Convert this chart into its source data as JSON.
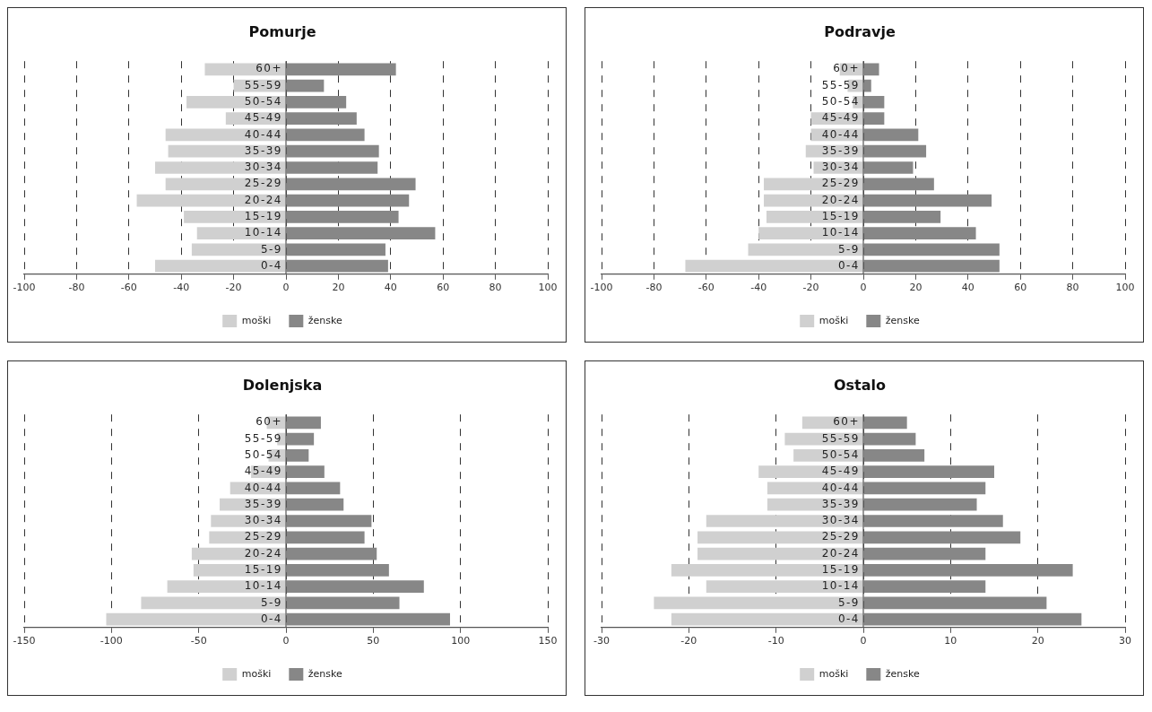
{
  "chart_data": [
    {
      "type": "bar",
      "title": "Pomurje",
      "orientation": "horizontal",
      "stacked": true,
      "grid": "x",
      "legend": "bottom",
      "categories": [
        "60+",
        "55-59",
        "50-54",
        "45-49",
        "40-44",
        "35-39",
        "30-34",
        "25-29",
        "20-24",
        "15-19",
        "10-14",
        "5-9",
        "0-4"
      ],
      "xlim": [
        -100,
        100
      ],
      "xticks": [
        -100,
        -80,
        -60,
        -40,
        -20,
        0,
        20,
        40,
        60,
        80,
        100
      ],
      "series": [
        {
          "name": "moški",
          "color": "#d0d0d0",
          "values": [
            -31,
            -20,
            -38,
            -23,
            -46,
            -45,
            -50,
            -46,
            -57,
            -39,
            -34,
            -36,
            -50
          ]
        },
        {
          "name": "ženske",
          "color": "#878787",
          "values": [
            42,
            14.5,
            23,
            27,
            30,
            35.5,
            35,
            49.5,
            47,
            43,
            57,
            38,
            39
          ]
        }
      ]
    },
    {
      "type": "bar",
      "title": "Podravje",
      "orientation": "horizontal",
      "stacked": true,
      "grid": "x",
      "legend": "bottom",
      "categories": [
        "60+",
        "55-59",
        "50-54",
        "45-49",
        "40-44",
        "35-39",
        "30-34",
        "25-29",
        "20-24",
        "15-19",
        "10-14",
        "5-9",
        "0-4"
      ],
      "xlim": [
        -100,
        100
      ],
      "xticks": [
        -100,
        -80,
        -60,
        -40,
        -20,
        0,
        20,
        40,
        60,
        80,
        100
      ],
      "series": [
        {
          "name": "moški",
          "color": "#d0d0d0",
          "values": [
            -9,
            -6,
            -4,
            -20,
            -20,
            -22,
            -19,
            -38,
            -38,
            -37,
            -40,
            -44,
            -68
          ]
        },
        {
          "name": "ženske",
          "color": "#878787",
          "values": [
            6,
            3,
            8,
            8,
            21,
            24,
            19,
            27,
            49,
            29.5,
            43,
            52,
            52
          ]
        }
      ]
    },
    {
      "type": "bar",
      "title": "Dolenjska",
      "orientation": "horizontal",
      "stacked": true,
      "grid": "x",
      "legend": "bottom",
      "categories": [
        "60+",
        "55-59",
        "50-54",
        "45-49",
        "40-44",
        "35-39",
        "30-34",
        "25-29",
        "20-24",
        "15-19",
        "10-14",
        "5-9",
        "0-4"
      ],
      "xlim": [
        -150,
        150
      ],
      "xticks": [
        -150,
        -100,
        -50,
        0,
        50,
        100,
        150
      ],
      "series": [
        {
          "name": "moški",
          "color": "#d0d0d0",
          "values": [
            -11,
            -5,
            -10,
            -20,
            -32,
            -38,
            -43,
            -44,
            -54,
            -53,
            -68,
            -83,
            -103
          ]
        },
        {
          "name": "ženske",
          "color": "#878787",
          "values": [
            20,
            16,
            13,
            22,
            31,
            33,
            49,
            45,
            52,
            59,
            79,
            65,
            94
          ]
        }
      ]
    },
    {
      "type": "bar",
      "title": "Ostalo",
      "orientation": "horizontal",
      "stacked": true,
      "grid": "x",
      "legend": "bottom",
      "categories": [
        "60+",
        "55-59",
        "50-54",
        "45-49",
        "40-44",
        "35-39",
        "30-34",
        "25-29",
        "20-24",
        "15-19",
        "10-14",
        "5-9",
        "0-4"
      ],
      "xlim": [
        -30,
        30
      ],
      "xticks": [
        -30,
        -20,
        -10,
        0,
        10,
        20,
        30
      ],
      "series": [
        {
          "name": "moški",
          "color": "#d0d0d0",
          "values": [
            -7,
            -9,
            -8,
            -12,
            -11,
            -11,
            -18,
            -19,
            -19,
            -22,
            -18,
            -24,
            -22
          ]
        },
        {
          "name": "ženske",
          "color": "#878787",
          "values": [
            5,
            6,
            7,
            15,
            14,
            13,
            16,
            18,
            14,
            24,
            14,
            21,
            25
          ]
        }
      ]
    }
  ]
}
